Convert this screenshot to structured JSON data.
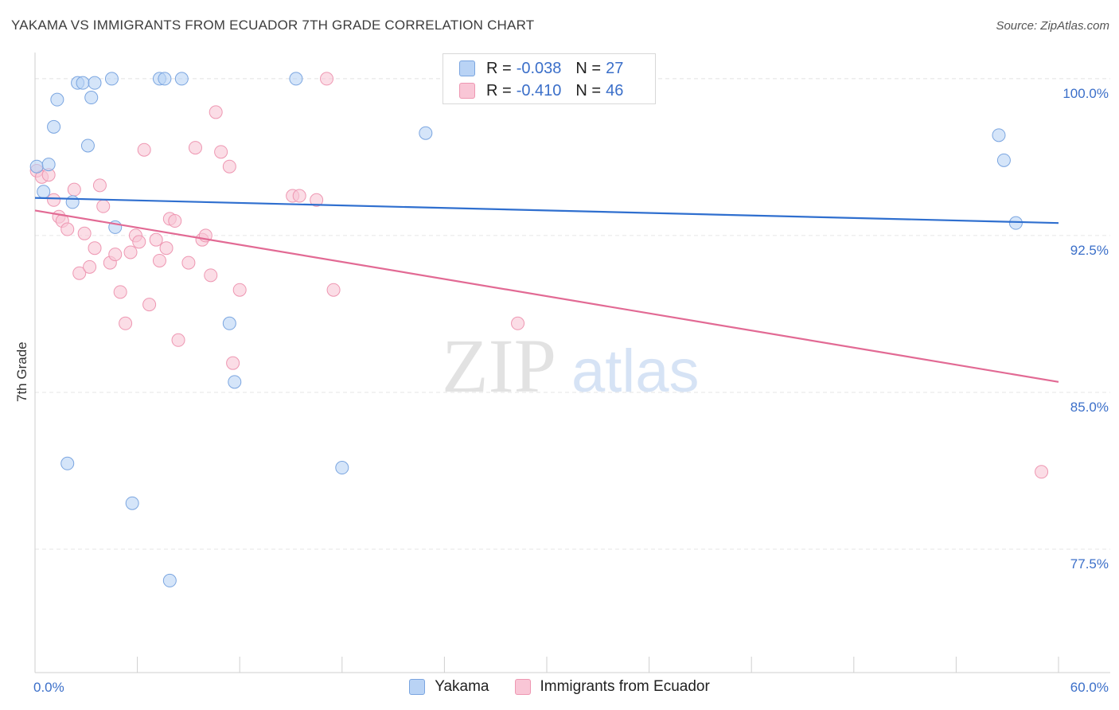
{
  "title": "YAKAMA VS IMMIGRANTS FROM ECUADOR 7TH GRADE CORRELATION CHART",
  "source": "Source: ZipAtlas.com",
  "watermark": {
    "zip": "ZIP",
    "atlas": "atlas"
  },
  "colors": {
    "blue_fill": "#b9d3f5",
    "blue_stroke": "#7aa5e0",
    "blue_line": "#2f6fcf",
    "pink_fill": "#f9c6d6",
    "pink_stroke": "#ee97b2",
    "pink_line": "#e26a94",
    "axis_text": "#3b6fc9",
    "grid": "#e6e6e6"
  },
  "legend": {
    "r_label": "R =",
    "n_label": "N =",
    "rows": [
      {
        "series": "Yakama",
        "r": "-0.038",
        "n": "27"
      },
      {
        "series": "Immigrants from Ecuador",
        "r": "-0.410",
        "n": "46"
      }
    ]
  },
  "chart_data": {
    "type": "scatter",
    "title": "YAKAMA VS IMMIGRANTS FROM ECUADOR 7TH GRADE CORRELATION CHART",
    "xlabel": "",
    "ylabel": "7th Grade",
    "xlim": [
      0,
      60
    ],
    "ylim": [
      71.6,
      101.1
    ],
    "x_tick_labels": [
      "0.0%",
      "60.0%"
    ],
    "y_ticks": [
      77.5,
      85.0,
      92.5,
      100.0
    ],
    "y_tick_labels": [
      "77.5%",
      "85.0%",
      "92.5%",
      "100.0%"
    ],
    "grid": "horizontal dashed",
    "legend_position": "top-center",
    "series": [
      {
        "name": "Yakama",
        "color": "#b9d3f5",
        "trend": {
          "x": [
            0,
            60
          ],
          "y": [
            94.3,
            93.1
          ]
        },
        "points": [
          {
            "x": 0.1,
            "y": 95.8
          },
          {
            "x": 0.5,
            "y": 94.6
          },
          {
            "x": 0.8,
            "y": 95.9
          },
          {
            "x": 1.1,
            "y": 97.7
          },
          {
            "x": 1.3,
            "y": 99.0
          },
          {
            "x": 1.9,
            "y": 81.6
          },
          {
            "x": 2.2,
            "y": 94.1
          },
          {
            "x": 2.5,
            "y": 99.8
          },
          {
            "x": 2.8,
            "y": 99.8
          },
          {
            "x": 3.1,
            "y": 96.8
          },
          {
            "x": 3.3,
            "y": 99.1
          },
          {
            "x": 3.5,
            "y": 99.8
          },
          {
            "x": 4.5,
            "y": 100.0
          },
          {
            "x": 4.7,
            "y": 92.9
          },
          {
            "x": 5.7,
            "y": 79.7
          },
          {
            "x": 7.3,
            "y": 100.0
          },
          {
            "x": 7.6,
            "y": 100.0
          },
          {
            "x": 7.9,
            "y": 76.0
          },
          {
            "x": 8.6,
            "y": 100.0
          },
          {
            "x": 11.4,
            "y": 88.3
          },
          {
            "x": 11.7,
            "y": 85.5
          },
          {
            "x": 15.3,
            "y": 100.0
          },
          {
            "x": 18.0,
            "y": 81.4
          },
          {
            "x": 22.9,
            "y": 97.4
          },
          {
            "x": 56.5,
            "y": 97.3
          },
          {
            "x": 56.8,
            "y": 96.1
          },
          {
            "x": 57.5,
            "y": 93.1
          }
        ]
      },
      {
        "name": "Immigrants from Ecuador",
        "color": "#f9c6d6",
        "trend": {
          "x": [
            0,
            60
          ],
          "y": [
            93.7,
            85.5
          ]
        },
        "points": [
          {
            "x": 0.1,
            "y": 95.6
          },
          {
            "x": 0.4,
            "y": 95.3
          },
          {
            "x": 0.8,
            "y": 95.4
          },
          {
            "x": 1.1,
            "y": 94.2
          },
          {
            "x": 1.4,
            "y": 93.4
          },
          {
            "x": 1.6,
            "y": 93.2
          },
          {
            "x": 1.9,
            "y": 92.8
          },
          {
            "x": 2.3,
            "y": 94.7
          },
          {
            "x": 2.6,
            "y": 90.7
          },
          {
            "x": 2.9,
            "y": 92.6
          },
          {
            "x": 3.2,
            "y": 91.0
          },
          {
            "x": 3.5,
            "y": 91.9
          },
          {
            "x": 3.8,
            "y": 94.9
          },
          {
            "x": 4.0,
            "y": 93.9
          },
          {
            "x": 4.4,
            "y": 91.2
          },
          {
            "x": 4.7,
            "y": 91.6
          },
          {
            "x": 5.0,
            "y": 89.8
          },
          {
            "x": 5.3,
            "y": 88.3
          },
          {
            "x": 5.6,
            "y": 91.7
          },
          {
            "x": 5.9,
            "y": 92.5
          },
          {
            "x": 6.1,
            "y": 92.2
          },
          {
            "x": 6.4,
            "y": 96.6
          },
          {
            "x": 6.7,
            "y": 89.2
          },
          {
            "x": 7.1,
            "y": 92.3
          },
          {
            "x": 7.3,
            "y": 91.3
          },
          {
            "x": 7.7,
            "y": 91.9
          },
          {
            "x": 7.9,
            "y": 93.3
          },
          {
            "x": 8.2,
            "y": 93.2
          },
          {
            "x": 8.4,
            "y": 87.5
          },
          {
            "x": 9.0,
            "y": 91.2
          },
          {
            "x": 9.4,
            "y": 96.7
          },
          {
            "x": 9.8,
            "y": 92.3
          },
          {
            "x": 10.0,
            "y": 92.5
          },
          {
            "x": 10.3,
            "y": 90.6
          },
          {
            "x": 10.6,
            "y": 98.4
          },
          {
            "x": 10.9,
            "y": 96.5
          },
          {
            "x": 11.4,
            "y": 95.8
          },
          {
            "x": 11.6,
            "y": 86.4
          },
          {
            "x": 12.0,
            "y": 89.9
          },
          {
            "x": 15.1,
            "y": 94.4
          },
          {
            "x": 15.5,
            "y": 94.4
          },
          {
            "x": 16.5,
            "y": 94.2
          },
          {
            "x": 17.1,
            "y": 100.0
          },
          {
            "x": 17.5,
            "y": 89.9
          },
          {
            "x": 28.3,
            "y": 88.3
          },
          {
            "x": 59.0,
            "y": 81.2
          }
        ]
      }
    ]
  }
}
